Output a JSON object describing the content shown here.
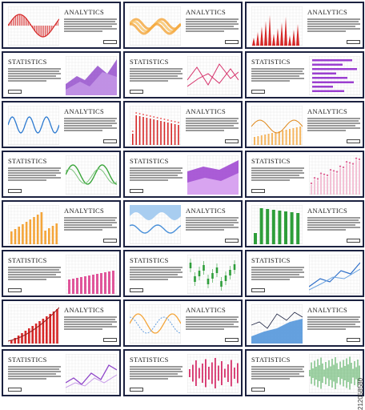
{
  "cards": [
    {
      "heading": "ANALYTICS",
      "chart": "wave-fill",
      "color": "#d62828",
      "chart_side": "left"
    },
    {
      "heading": "ANALYTICS",
      "chart": "band-wave",
      "color": "#f4a53a",
      "chart_side": "left"
    },
    {
      "heading": "ANALYTICS",
      "chart": "spikes",
      "color": "#d62828",
      "chart_side": "left"
    },
    {
      "heading": "STATISTICS",
      "chart": "area-peaks",
      "color": "#8e44c9",
      "chart_side": "right"
    },
    {
      "heading": "STATISTICS",
      "chart": "multi-line",
      "color": "#d6336c",
      "chart_side": "right"
    },
    {
      "heading": "STATISTICS",
      "chart": "hbars",
      "color": "#9b3fd0",
      "chart_side": "right"
    },
    {
      "heading": "ANALYTICS",
      "chart": "sine-line",
      "color": "#2e7bd1",
      "chart_side": "left"
    },
    {
      "heading": "ANALYTICS",
      "chart": "bars-dots",
      "color": "#d62828",
      "chart_side": "left"
    },
    {
      "heading": "ANALYTICS",
      "chart": "area-bars",
      "color": "#f4a53a",
      "chart_side": "left"
    },
    {
      "heading": "STATISTICS",
      "chart": "green-wave",
      "color": "#3aa53a",
      "chart_side": "right"
    },
    {
      "heading": "STATISTICS",
      "chart": "area-stack",
      "color": "#9b3fd0",
      "chart_side": "right"
    },
    {
      "heading": "STATISTICS",
      "chart": "pink-scatter",
      "color": "#e06a9a",
      "chart_side": "right"
    },
    {
      "heading": "ANALYTICS",
      "chart": "orange-bars",
      "color": "#f4a53a",
      "chart_side": "left"
    },
    {
      "heading": "ANALYTICS",
      "chart": "blue-waves",
      "color": "#4a90d9",
      "chart_side": "left"
    },
    {
      "heading": "ANALYTICS",
      "chart": "green-bars",
      "color": "#2e9e3a",
      "chart_side": "left"
    },
    {
      "heading": "STATISTICS",
      "chart": "pink-bars",
      "color": "#e0559a",
      "chart_side": "right"
    },
    {
      "heading": "STATISTICS",
      "chart": "candles",
      "color": "#2e9e3a",
      "chart_side": "right"
    },
    {
      "heading": "STATISTICS",
      "chart": "blue-lines",
      "color": "#2e6fc9",
      "chart_side": "right"
    },
    {
      "heading": "ANALYTICS",
      "chart": "rising-bars",
      "color": "#d62828",
      "chart_side": "left"
    },
    {
      "heading": "ANALYTICS",
      "chart": "orange-lines",
      "color": "#f4a53a",
      "chart_side": "left"
    },
    {
      "heading": "ANALYTICS",
      "chart": "blue-area",
      "color": "#4a90d9",
      "chart_side": "left"
    },
    {
      "heading": "STATISTICS",
      "chart": "purple-lines",
      "color": "#8e44c9",
      "chart_side": "right"
    },
    {
      "heading": "STATISTICS",
      "chart": "pink-spikes",
      "color": "#d6336c",
      "chart_side": "right"
    },
    {
      "heading": "STATISTICS",
      "chart": "green-noise",
      "color": "#2e9e3a",
      "chart_side": "right"
    }
  ],
  "watermark": "212058580"
}
